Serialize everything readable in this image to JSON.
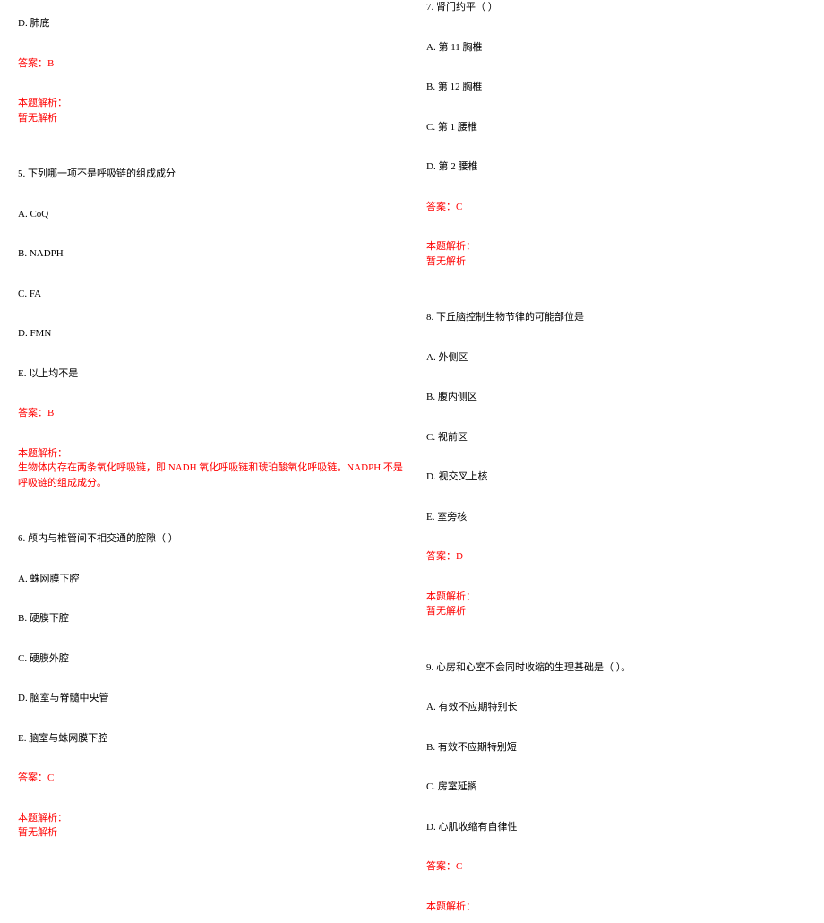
{
  "left": {
    "q4_optD": "D. 肺底",
    "q4_answer": "答案：B",
    "q4_analysis_label": "本题解析：",
    "q4_analysis_text": "暂无解析",
    "q5_title": "5. 下列哪一项不是呼吸链的组成成分",
    "q5_optA": "A. CoQ",
    "q5_optB": "B. NADPH",
    "q5_optC": "C. FA",
    "q5_optD": "D. FMN",
    "q5_optE": "E. 以上均不是",
    "q5_answer": "答案：B",
    "q5_analysis_label": "本题解析：",
    "q5_analysis_text": "生物体内存在两条氧化呼吸链，即 NADH 氧化呼吸链和琥珀酸氧化呼吸链。NADPH 不是呼吸链的组成成分。",
    "q6_title": "6. 颅内与椎管间不相交通的腔隙（ ）",
    "q6_optA": "A. 蛛网膜下腔",
    "q6_optB": "B. 硬膜下腔",
    "q6_optC": "C. 硬膜外腔",
    "q6_optD": "D. 脑室与脊髓中央管",
    "q6_optE": "E. 脑室与蛛网膜下腔",
    "q6_answer": "答案：C",
    "q6_analysis_label": "本题解析：",
    "q6_analysis_text": "暂无解析"
  },
  "right": {
    "q7_title": "7. 肾门约平（ ）",
    "q7_optA": "A. 第 11 胸椎",
    "q7_optB": "B. 第 12 胸椎",
    "q7_optC": "C. 第 1 腰椎",
    "q7_optD": "D. 第 2 腰椎",
    "q7_answer": "答案：C",
    "q7_analysis_label": "本题解析：",
    "q7_analysis_text": "暂无解析",
    "q8_title": "8. 下丘脑控制生物节律的可能部位是",
    "q8_optA": "A. 外侧区",
    "q8_optB": "B. 腹内侧区",
    "q8_optC": "C. 视前区",
    "q8_optD": "D. 视交叉上核",
    "q8_optE": "E. 室旁核",
    "q8_answer": "答案：D",
    "q8_analysis_label": "本题解析：",
    "q8_analysis_text": "暂无解析",
    "q9_title": "9. 心房和心室不会同时收缩的生理基础是（ ）。",
    "q9_optA": "A. 有效不应期特别长",
    "q9_optB": "B. 有效不应期特别短",
    "q9_optC": "C. 房室延搁",
    "q9_optD": "D. 心肌收缩有自律性",
    "q9_answer": "答案：C",
    "q9_analysis_label": "本题解析："
  }
}
